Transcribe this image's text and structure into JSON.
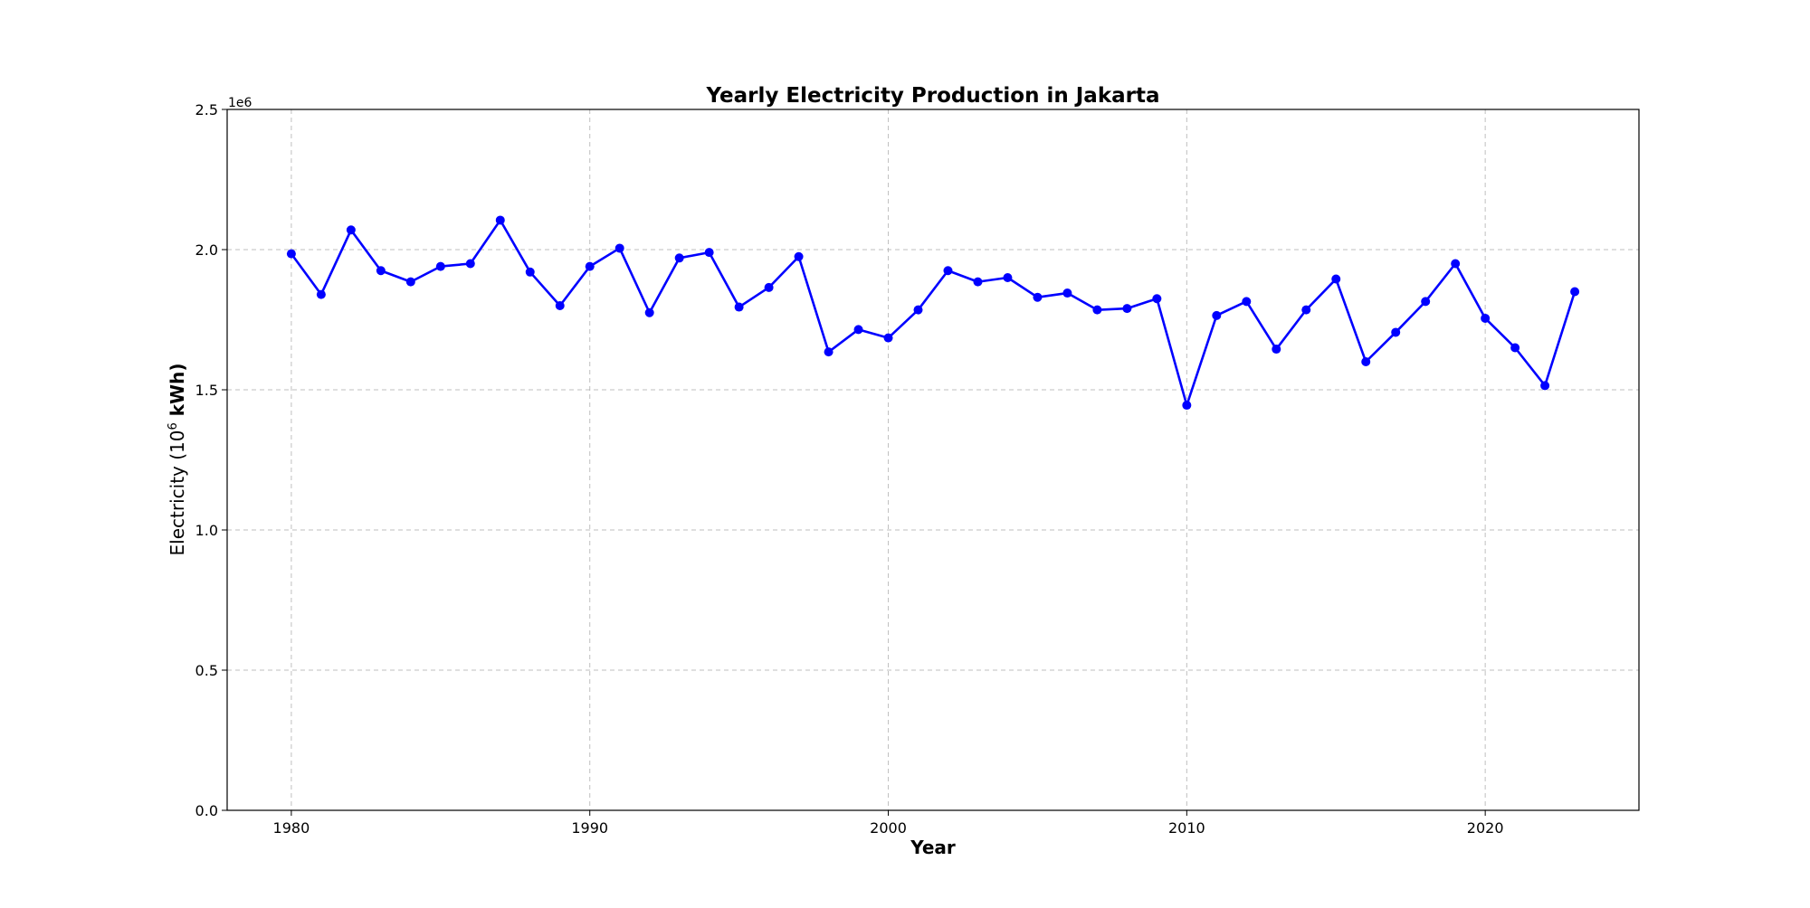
{
  "chart_data": {
    "type": "line",
    "title": "Yearly Electricity Production in Jakarta",
    "xlabel": "Year",
    "ylabel_main": "Electricity (10",
    "ylabel_sup": "6",
    "ylabel_end": " kWh)",
    "y_offset_label": "1e6",
    "xlim": [
      1977.85,
      2025.15
    ],
    "ylim": [
      0,
      2500000
    ],
    "xticks": [
      1980,
      1990,
      2000,
      2010,
      2020
    ],
    "xtick_labels": [
      "1980",
      "1990",
      "2000",
      "2010",
      "2020"
    ],
    "yticks": [
      0,
      500000,
      1000000,
      1500000,
      2000000,
      2500000
    ],
    "ytick_labels": [
      "0.0",
      "0.5",
      "1.0",
      "1.5",
      "2.0",
      "2.5"
    ],
    "grid": true,
    "series": [
      {
        "color": "#0000ff",
        "marker": "circle",
        "x": [
          1980,
          1981,
          1982,
          1983,
          1984,
          1985,
          1986,
          1987,
          1988,
          1989,
          1990,
          1991,
          1992,
          1993,
          1994,
          1995,
          1996,
          1997,
          1998,
          1999,
          2000,
          2001,
          2002,
          2003,
          2004,
          2005,
          2006,
          2007,
          2008,
          2009,
          2010,
          2011,
          2012,
          2013,
          2014,
          2015,
          2016,
          2017,
          2018,
          2019,
          2020,
          2021,
          2022,
          2023
        ],
        "y": [
          1985000,
          1840000,
          2070000,
          1925000,
          1885000,
          1940000,
          1950000,
          2105000,
          1920000,
          1800000,
          1940000,
          2005000,
          1775000,
          1970000,
          1990000,
          1795000,
          1865000,
          1975000,
          1635000,
          1715000,
          1685000,
          1785000,
          1925000,
          1885000,
          1900000,
          1830000,
          1845000,
          1785000,
          1790000,
          1825000,
          1445000,
          1765000,
          1815000,
          1645000,
          1785000,
          1895000,
          1600000,
          1705000,
          1815000,
          1950000,
          1755000,
          1650000,
          1515000,
          1850000
        ]
      }
    ]
  }
}
